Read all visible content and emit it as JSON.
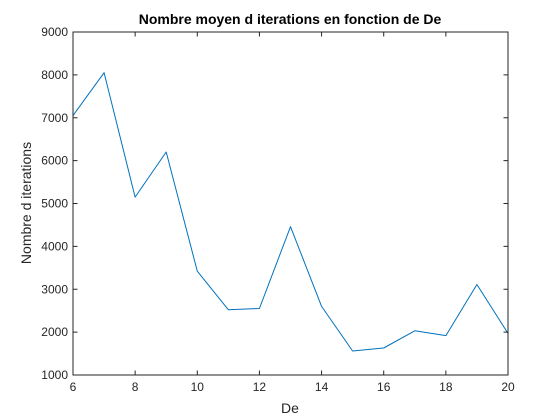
{
  "chart_data": {
    "type": "line",
    "title": "Nombre moyen d iterations en fonction de De",
    "xlabel": "De",
    "ylabel": "Nombre d iterations",
    "xlim": [
      6,
      20
    ],
    "ylim": [
      1000,
      9000
    ],
    "xticks": [
      "6",
      "8",
      "10",
      "12",
      "14",
      "16",
      "18",
      "20"
    ],
    "yticks": [
      "1000",
      "2000",
      "3000",
      "4000",
      "5000",
      "6000",
      "7000",
      "8000",
      "9000"
    ],
    "grid": false,
    "series": [
      {
        "x": [
          6,
          7,
          8,
          9,
          10,
          11,
          12,
          13,
          14,
          15,
          16,
          17,
          18,
          19,
          20
        ],
        "y": [
          7050,
          8050,
          5150,
          6200,
          3420,
          2520,
          2550,
          4460,
          2600,
          1560,
          1630,
          2030,
          1920,
          3110,
          1970
        ],
        "color": "#0072bd"
      }
    ]
  }
}
